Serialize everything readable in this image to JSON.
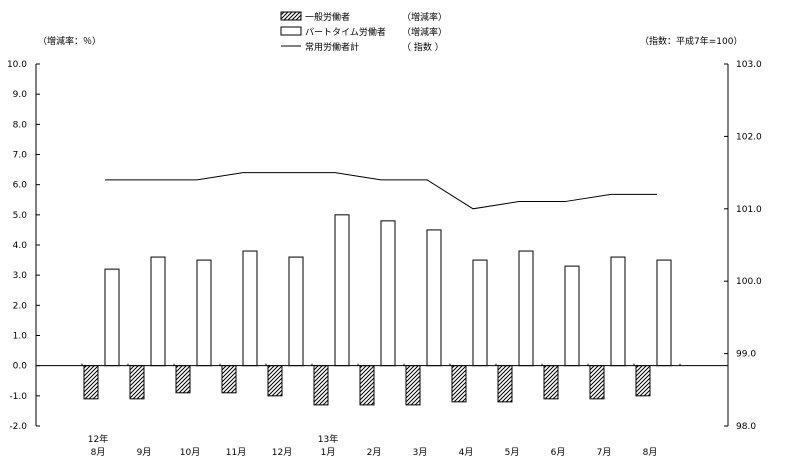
{
  "chart_data": {
    "type": "bar",
    "left_axis_label": "（増減率：％）",
    "right_axis_label": "（指数：平成7年=100）",
    "categories": [
      "8月",
      "9月",
      "10月",
      "11月",
      "12月",
      "1月",
      "2月",
      "3月",
      "4月",
      "5月",
      "6月",
      "7月",
      "8月"
    ],
    "year_labels": [
      {
        "index": 0,
        "text": "12年"
      },
      {
        "index": 5,
        "text": "13年"
      }
    ],
    "legend": [
      {
        "label": "一般労働者",
        "tag": "（増減率）",
        "style": "hatched-bar"
      },
      {
        "label": "パートタイム労働者",
        "tag": "（増減率）",
        "style": "white-bar"
      },
      {
        "label": "常用労働者計",
        "tag": "（ 指数 ）",
        "style": "line"
      }
    ],
    "series": [
      {
        "name": "一般労働者",
        "axis": "left",
        "kind": "bar",
        "values": [
          -1.1,
          -1.1,
          -0.9,
          -0.9,
          -1.0,
          -1.3,
          -1.3,
          -1.3,
          -1.2,
          -1.2,
          -1.1,
          -1.1,
          -1.0
        ]
      },
      {
        "name": "パートタイム労働者",
        "axis": "left",
        "kind": "bar",
        "values": [
          3.2,
          3.6,
          3.5,
          3.8,
          3.6,
          5.0,
          4.8,
          4.5,
          3.5,
          3.8,
          3.3,
          3.6,
          3.5
        ]
      },
      {
        "name": "常用労働者計",
        "axis": "right",
        "kind": "line",
        "values": [
          101.4,
          101.4,
          101.4,
          101.5,
          101.5,
          101.5,
          101.4,
          101.4,
          101.0,
          101.1,
          101.1,
          101.2,
          101.2
        ]
      }
    ],
    "left_axis": {
      "min": -2.0,
      "max": 10.0,
      "step": 1.0,
      "ticks": [
        "10.0",
        "9.0",
        "8.0",
        "7.0",
        "6.0",
        "5.0",
        "4.0",
        "3.0",
        "2.0",
        "1.0",
        "0.0",
        "-1.0",
        "-2.0"
      ]
    },
    "right_axis": {
      "min": 98.0,
      "max": 103.0,
      "step": 1.0,
      "ticks": [
        "103.0",
        "102.0",
        "101.0",
        "100.0",
        "99.0",
        "98.0"
      ]
    },
    "grid": false,
    "legend_position": "top-center"
  }
}
